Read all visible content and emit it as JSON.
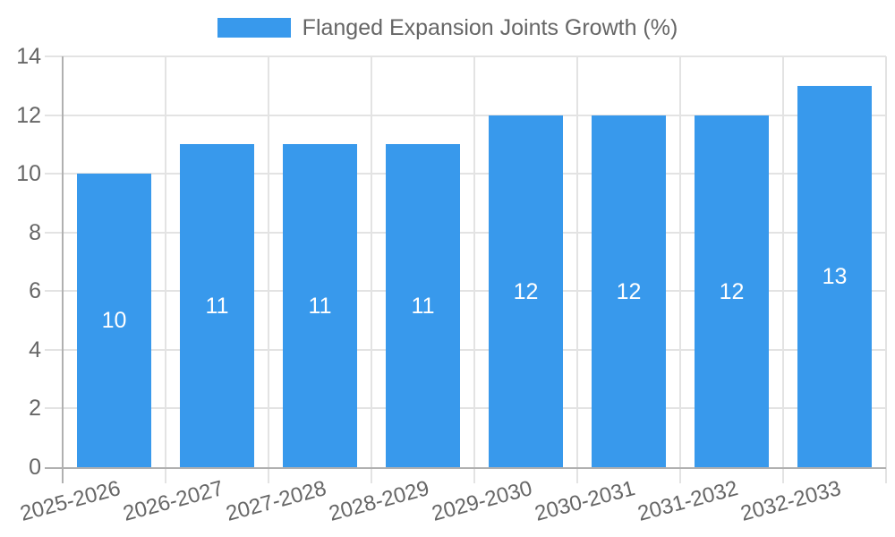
{
  "page": {
    "background": "#ffffff"
  },
  "legend": {
    "label": "Flanged Expansion Joints Growth (%)",
    "swatch_color": "#3899ec"
  },
  "chart_data": {
    "type": "bar",
    "title": "Flanged Expansion Joints Growth (%)",
    "legend_position": "top",
    "legend_entries": [
      "Flanged Expansion Joints Growth (%)"
    ],
    "categories": [
      "2025-2026",
      "2026-2027",
      "2027-2028",
      "2028-2029",
      "2029-2030",
      "2030-2031",
      "2031-2032",
      "2032-2033"
    ],
    "series": [
      {
        "name": "Flanged Expansion Joints Growth (%)",
        "values": [
          10,
          11,
          11,
          11,
          12,
          12,
          12,
          13
        ],
        "color": "#3899ec"
      }
    ],
    "value_labels": [
      "10",
      "11",
      "11",
      "11",
      "12",
      "12",
      "12",
      "13"
    ],
    "xlabel": "",
    "ylabel": "",
    "ylim": [
      0,
      14
    ],
    "yticks": [
      0,
      2,
      4,
      6,
      8,
      10,
      12,
      14
    ],
    "grid": true,
    "x_label_rotation_deg": -15,
    "colors": {
      "bar": "#3899ec",
      "value_label": "#ffffff",
      "grid_line": "#e3e3e3",
      "axis_line": "#b0b0b0",
      "tick_label": "#666666",
      "legend_text": "#666666"
    }
  }
}
